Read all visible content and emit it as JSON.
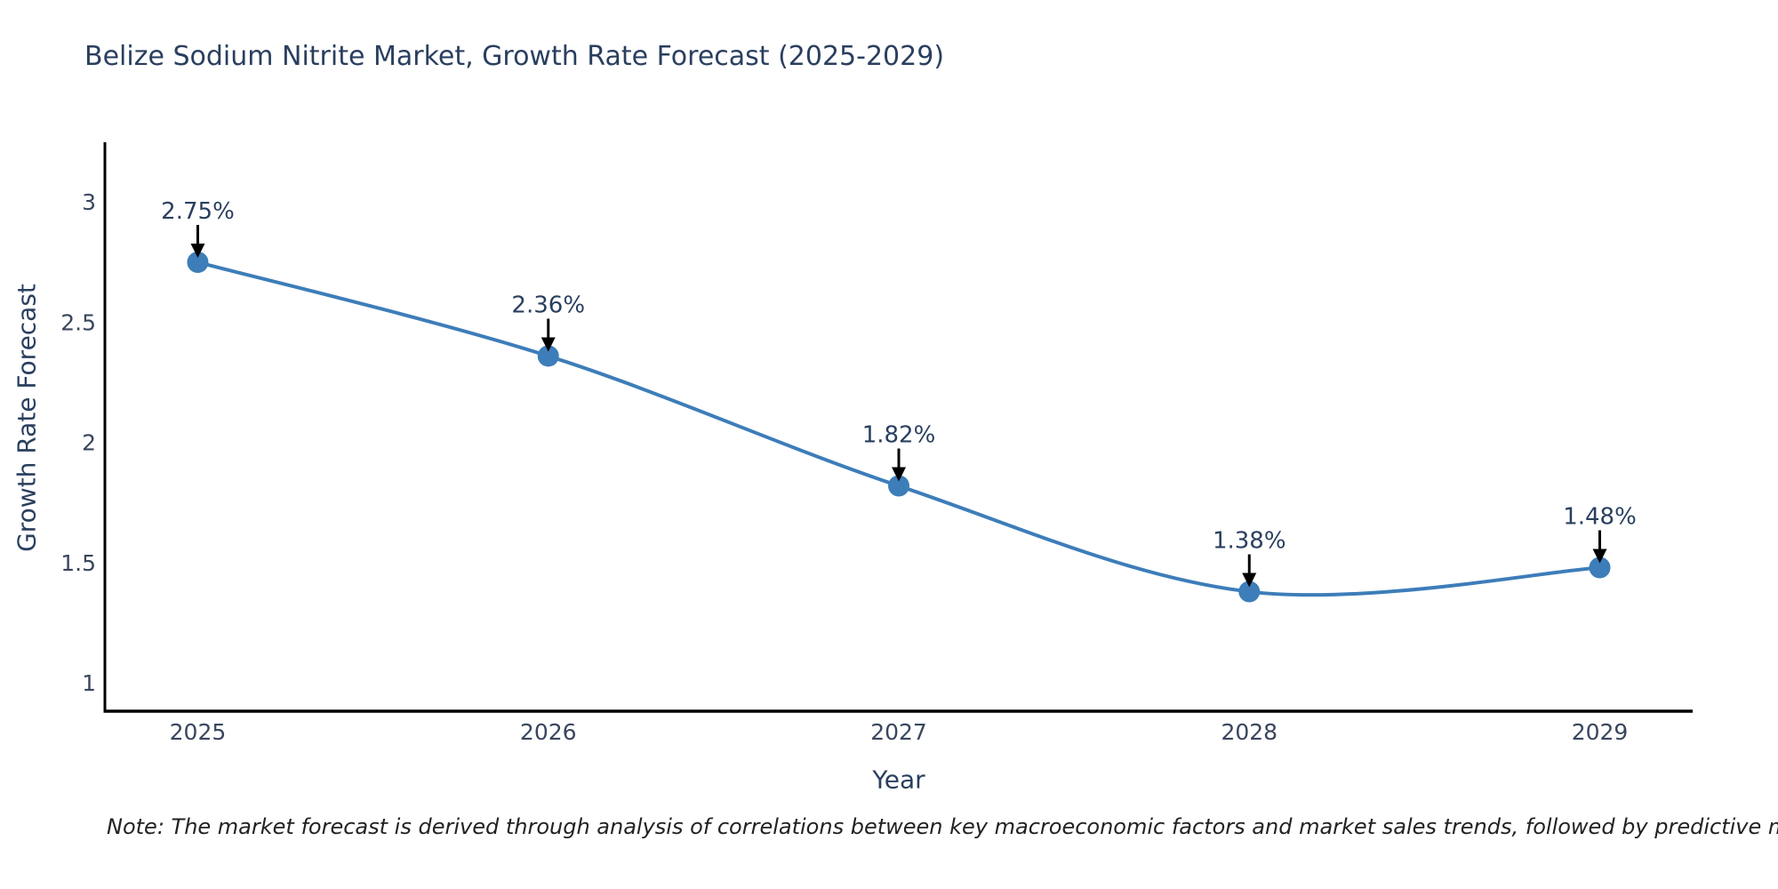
{
  "title": "Belize Sodium Nitrite Market, Growth Rate Forecast (2025-2029)",
  "note": "Note: The market forecast is derived through analysis of correlations between key macroeconomic factors and market sales trends, followed by predictive modeling to project future sales",
  "colors": {
    "line": "#3d7db9",
    "marker": "#3d7db9",
    "axis": "#000000",
    "arrow": "#000000",
    "title_text": "#2a3f5f",
    "tick_label": "#39465e",
    "annotation_text": "#2a3f5f",
    "note_text": "#222222",
    "background": "#ffffff"
  },
  "chart_data": {
    "type": "line",
    "title": "Belize Sodium Nitrite Market, Growth Rate Forecast (2025-2029)",
    "x": [
      2025,
      2026,
      2027,
      2028,
      2029
    ],
    "values": [
      2.75,
      2.36,
      1.82,
      1.38,
      1.48
    ],
    "point_labels": [
      "2.75%",
      "2.36%",
      "1.82%",
      "1.38%",
      "1.48%"
    ],
    "xlabel": "Year",
    "ylabel": "Growth Rate Forecast",
    "xtick_labels": [
      "2025",
      "2026",
      "2027",
      "2028",
      "2029"
    ],
    "yticks": [
      1,
      1.5,
      2,
      2.5,
      3
    ],
    "ytick_labels": [
      "1",
      "1.5",
      "2",
      "2.5",
      "3"
    ],
    "xlim": [
      2024.735,
      2029.265
    ],
    "ylim": [
      0.883,
      3.249
    ],
    "line_shape": "spline",
    "marker_size": 12,
    "grid": false,
    "legend": false
  }
}
